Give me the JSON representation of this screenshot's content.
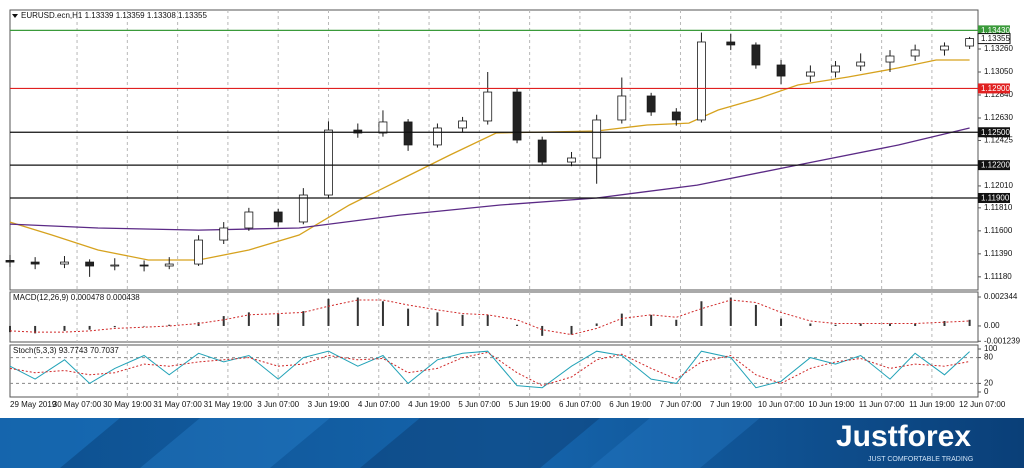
{
  "chart_data": [
    {
      "type": "candlestick",
      "title": "EURUSD.ecn,H1  1.13339 1.13359 1.13308 1.13355",
      "x": [
        0,
        6,
        13,
        19,
        25,
        32,
        38,
        45,
        51,
        57,
        64,
        70,
        76,
        83,
        89,
        95,
        102,
        108,
        114,
        121,
        127,
        134,
        140,
        146,
        153,
        159,
        165,
        172,
        178,
        184,
        191,
        197,
        203,
        210,
        216,
        223,
        229
      ],
      "open": [
        1.1133,
        1.11315,
        1.11297,
        1.11315,
        1.11279,
        1.11288,
        1.11279,
        1.11297,
        1.11516,
        1.11626,
        1.11772,
        1.11681,
        1.11927,
        1.1252,
        1.12493,
        1.12594,
        1.12384,
        1.12539,
        1.12603,
        1.12867,
        1.12429,
        1.12228,
        1.12265,
        1.12612,
        1.12831,
        1.12685,
        1.12612,
        1.13324,
        1.13297,
        1.13114,
        1.13013,
        1.1305,
        1.13105,
        1.13141,
        1.13196,
        1.13251,
        1.13287
      ],
      "high": [
        1.1138,
        1.1136,
        1.1137,
        1.1134,
        1.1135,
        1.1133,
        1.1136,
        1.1156,
        1.1168,
        1.1181,
        1.118,
        1.1199,
        1.126,
        1.1258,
        1.127,
        1.1262,
        1.1258,
        1.1264,
        1.1305,
        1.129,
        1.1246,
        1.1232,
        1.1266,
        1.13,
        1.1286,
        1.1272,
        1.1341,
        1.134,
        1.1332,
        1.1316,
        1.1311,
        1.1315,
        1.1322,
        1.1325,
        1.133,
        1.1332,
        1.1337
      ],
      "low": [
        1.1127,
        1.1125,
        1.1126,
        1.1118,
        1.1124,
        1.1123,
        1.1125,
        1.1128,
        1.1148,
        1.116,
        1.1164,
        1.1166,
        1.119,
        1.1245,
        1.1246,
        1.1233,
        1.1236,
        1.125,
        1.1257,
        1.124,
        1.122,
        1.1219,
        1.1203,
        1.1258,
        1.1265,
        1.1256,
        1.1259,
        1.1325,
        1.1308,
        1.1294,
        1.1296,
        1.13,
        1.1306,
        1.1305,
        1.1315,
        1.132,
        1.1326
      ],
      "close": [
        1.11315,
        1.11297,
        1.11315,
        1.11279,
        1.11288,
        1.11279,
        1.11297,
        1.11516,
        1.11626,
        1.11772,
        1.11681,
        1.11927,
        1.1252,
        1.12493,
        1.12594,
        1.12384,
        1.12539,
        1.12603,
        1.12867,
        1.12429,
        1.12228,
        1.12265,
        1.12612,
        1.12831,
        1.12685,
        1.12612,
        1.13324,
        1.13297,
        1.13114,
        1.13013,
        1.1305,
        1.13105,
        1.13141,
        1.13196,
        1.13251,
        1.13287,
        1.13355
      ],
      "up_color": "#ffffff",
      "down_color": "#222222",
      "outline_color": "#1a1a1a",
      "overlays": [
        {
          "color": "#d6a21e",
          "x": [
            0,
            10,
            21,
            33,
            45,
            57,
            69,
            81,
            93,
            105,
            116,
            128,
            140,
            152,
            162,
            169,
            179,
            188,
            200,
            212,
            221,
            229
          ],
          "values": [
            1.1168,
            1.11562,
            1.11425,
            1.11334,
            1.11334,
            1.11425,
            1.11562,
            1.11836,
            1.12064,
            1.12292,
            1.12493,
            1.12502,
            1.12511,
            1.12566,
            1.12584,
            1.12703,
            1.12813,
            1.12931,
            1.13004,
            1.13087,
            1.1316,
            1.1316
          ]
        },
        {
          "color": "#5b2a86",
          "x": [
            0,
            21,
            45,
            69,
            93,
            117,
            140,
            164,
            188,
            212,
            229
          ],
          "values": [
            1.11662,
            1.11626,
            1.11607,
            1.11626,
            1.11744,
            1.11836,
            1.119,
            1.12018,
            1.12201,
            1.12384,
            1.12539
          ]
        }
      ],
      "levels": [
        {
          "value": 1.1343,
          "label": "1.13430",
          "color": "#3a9a3a"
        },
        {
          "value": 1.129,
          "label": "1.12900",
          "color": "#e02020"
        },
        {
          "value": 1.125,
          "label": "1.12500",
          "color": "#111111"
        },
        {
          "value": 1.122,
          "label": "1.12200",
          "color": "#111111"
        },
        {
          "value": 1.119,
          "label": "1.11900",
          "color": "#111111"
        }
      ],
      "current_price": 1.13355,
      "xlim": [
        0,
        231
      ],
      "ylim": [
        1.1106,
        1.13616
      ],
      "yticks": [
        {
          "value": 1.1326,
          "label": "1.13260"
        },
        {
          "value": 1.1305,
          "label": "1.13050"
        },
        {
          "value": 1.1284,
          "label": "1.12840"
        },
        {
          "value": 1.1263,
          "label": "1.12630"
        },
        1.12425,
        {
          "value": 1.1201,
          "label": "1.12010"
        },
        {
          "value": 1.1181,
          "label": "1.11810"
        },
        {
          "value": 1.116,
          "label": "1.11600"
        },
        {
          "value": 1.1139,
          "label": "1.11390"
        },
        {
          "value": 1.1118,
          "label": "1.11180"
        }
      ],
      "xticks": [
        {
          "value": 0,
          "label": "29 May 2019"
        },
        {
          "value": 16,
          "label": "30 May 07:00"
        },
        {
          "value": 28,
          "label": "30 May 19:00"
        },
        {
          "value": 40,
          "label": "31 May 07:00"
        },
        {
          "value": 52,
          "label": "31 May 19:00"
        },
        {
          "value": 64,
          "label": "3 Jun 07:00"
        },
        {
          "value": 76,
          "label": "3 Jun 19:00"
        },
        {
          "value": 88,
          "label": "4 Jun 07:00"
        },
        {
          "value": 100,
          "label": "4 Jun 19:00"
        },
        {
          "value": 112,
          "label": "5 Jun 07:00"
        },
        {
          "value": 124,
          "label": "5 Jun 19:00"
        },
        {
          "value": 136,
          "label": "6 Jun 07:00"
        },
        {
          "value": 148,
          "label": "6 Jun 19:00"
        },
        {
          "value": 160,
          "label": "7 Jun 07:00"
        },
        {
          "value": 172,
          "label": "7 Jun 19:00"
        },
        {
          "value": 184,
          "label": "10 Jun 07:00"
        },
        {
          "value": 196,
          "label": "10 Jun 19:00"
        },
        {
          "value": 208,
          "label": "11 Jun 07:00"
        },
        {
          "value": 220,
          "label": "11 Jun 19:00"
        },
        {
          "value": 232,
          "label": "12 Jun 07:00"
        }
      ]
    },
    {
      "type": "bar",
      "title": "MACD(12,26,9) 0.000478 0.000438",
      "series": [
        {
          "style": "bar",
          "color": "#333333",
          "values": [
            -0.0005,
            -0.0006,
            -0.0004,
            -0.0003,
            -0.0001,
            0.0,
            0.0001,
            0.0003,
            0.0008,
            0.0011,
            0.001,
            0.0012,
            0.0022,
            0.0023,
            0.002,
            0.0014,
            0.0011,
            0.0009,
            0.0009,
            0.0001,
            -0.0008,
            -0.0007,
            0.0002,
            0.001,
            0.0009,
            0.0005,
            0.002,
            0.0023,
            0.0017,
            0.0006,
            0.0002,
            0.0001,
            0.0002,
            0.0002,
            0.0002,
            0.0004,
            0.0005
          ]
        },
        {
          "style": "dotted",
          "color": "#d02828",
          "values": [
            -0.0004,
            -0.0005,
            -0.0005,
            -0.0004,
            -0.0002,
            -0.0001,
            0.0,
            0.0002,
            0.0005,
            0.0009,
            0.001,
            0.0011,
            0.0016,
            0.0021,
            0.0021,
            0.0017,
            0.0013,
            0.001,
            0.0009,
            0.0005,
            -0.0003,
            -0.0007,
            -0.0002,
            0.0006,
            0.0009,
            0.0007,
            0.0014,
            0.0021,
            0.0019,
            0.0011,
            0.0004,
            0.0002,
            0.0002,
            0.0002,
            0.0002,
            0.0003,
            0.0004
          ]
        }
      ],
      "ylim": [
        -0.0013,
        0.00275
      ],
      "yticks": [
        0.002344,
        {
          "value": 0,
          "label": "0.00"
        },
        -0.001239
      ]
    },
    {
      "type": "line",
      "title": "Stoch(5,3,3) 93.7743 70.7037",
      "series": [
        {
          "style": "solid",
          "color": "#23a3b8",
          "values": [
            60,
            30,
            75,
            20,
            55,
            85,
            40,
            90,
            70,
            85,
            30,
            80,
            95,
            60,
            85,
            20,
            75,
            90,
            95,
            15,
            10,
            60,
            95,
            85,
            30,
            20,
            95,
            80,
            10,
            25,
            80,
            65,
            85,
            30,
            90,
            40,
            94
          ]
        },
        {
          "style": "dotted",
          "color": "#d02828",
          "values": [
            55,
            45,
            50,
            40,
            45,
            65,
            60,
            70,
            75,
            80,
            60,
            65,
            85,
            75,
            78,
            45,
            55,
            80,
            92,
            45,
            15,
            35,
            75,
            88,
            55,
            30,
            70,
            85,
            40,
            20,
            55,
            70,
            78,
            55,
            65,
            60,
            71
          ]
        }
      ],
      "levels": [
        80,
        20
      ],
      "ylim": [
        -11.6,
        109.3
      ],
      "yticks": [
        100,
        80,
        20,
        0
      ]
    }
  ],
  "branding": {
    "logo": "Justforex",
    "tagline": "JUST COMFORTABLE TRADING"
  }
}
